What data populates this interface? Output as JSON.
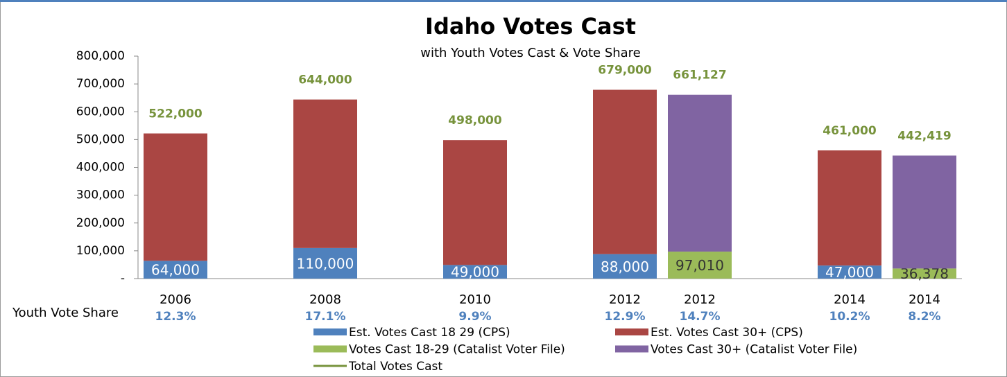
{
  "chart_data": {
    "type": "bar",
    "title": "Idaho Votes Cast",
    "subtitle": "with Youth Votes Cast & Vote Share",
    "categories": [
      "2006",
      null,
      "2008",
      null,
      "2010",
      null,
      "2012",
      "2012",
      null,
      "2014",
      "2014"
    ],
    "ylim": [
      0,
      800000
    ],
    "yticks": [
      {
        "value": 0,
        "label": "-"
      },
      {
        "value": 100000,
        "label": "100,000"
      },
      {
        "value": 200000,
        "label": "200,000"
      },
      {
        "value": 300000,
        "label": "300,000"
      },
      {
        "value": 400000,
        "label": "400,000"
      },
      {
        "value": 500000,
        "label": "500,000"
      },
      {
        "value": 600000,
        "label": "600,000"
      },
      {
        "value": 700000,
        "label": "700,000"
      },
      {
        "value": 800000,
        "label": "800,000"
      }
    ],
    "series": [
      {
        "name": "Est. Votes Cast 18 29 (CPS)",
        "type": "bar",
        "color": "#4f81bd",
        "label_color": "#ffffff",
        "values": [
          64000,
          null,
          110000,
          null,
          49000,
          null,
          88000,
          null,
          null,
          47000,
          null
        ],
        "value_labels": [
          "64,000",
          null,
          "110,000",
          null,
          "49,000",
          null,
          "88,000",
          null,
          null,
          "47,000",
          null
        ]
      },
      {
        "name": "Est. Votes Cast 30+ (CPS)",
        "type": "bar",
        "color": "#aa4643",
        "values": [
          458000,
          null,
          534000,
          null,
          449000,
          null,
          591000,
          null,
          null,
          414000,
          null
        ]
      },
      {
        "name": "Votes Cast 18-29 (Catalist Voter File)",
        "type": "bar",
        "color": "#9bbb59",
        "label_color": "#333333",
        "values": [
          null,
          null,
          null,
          null,
          null,
          null,
          null,
          97010,
          null,
          null,
          36378
        ],
        "value_labels": [
          null,
          null,
          null,
          null,
          null,
          null,
          null,
          "97,010",
          null,
          null,
          "36,378"
        ]
      },
      {
        "name": "Votes Cast 30+ (Catalist Voter File)",
        "type": "bar",
        "color": "#8064a2",
        "values": [
          null,
          null,
          null,
          null,
          null,
          null,
          null,
          564117,
          null,
          null,
          406041
        ]
      },
      {
        "name": "Total Votes Cast",
        "type": "line",
        "color": "#77933c",
        "values": [
          522000,
          null,
          644000,
          null,
          498000,
          null,
          679000,
          661127,
          null,
          461000,
          442419
        ],
        "value_labels": [
          "522,000",
          null,
          "644,000",
          null,
          "498,000",
          null,
          "679,000",
          "661,127",
          null,
          "461,000",
          "442,419"
        ]
      }
    ],
    "youth_vote_share": {
      "label": "Youth Vote Share",
      "color": "#4f81bd",
      "values": [
        12.3,
        null,
        17.1,
        null,
        9.9,
        null,
        12.9,
        14.7,
        null,
        10.2,
        8.2
      ],
      "value_labels": [
        "12.3%",
        null,
        "17.1%",
        null,
        "9.9%",
        null,
        "12.9%",
        "14.7%",
        null,
        "10.2%",
        "8.2%"
      ]
    }
  }
}
